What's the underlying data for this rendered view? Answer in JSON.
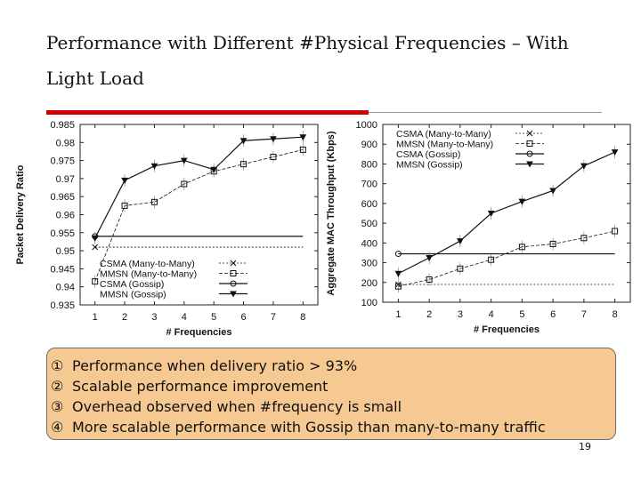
{
  "slide": {
    "title_line1": "Performance with Different #Physical Frequencies – With",
    "title_line2": "Light Load",
    "notes": [
      {
        "num": "①",
        "text": "Performance when delivery ratio > 93%"
      },
      {
        "num": "②",
        "text": "Scalable performance improvement"
      },
      {
        "num": "③",
        "text": "Overhead observed when #frequency is small"
      },
      {
        "num": "④",
        "text": "More scalable performance with Gossip than many-to-many traffic"
      }
    ],
    "page_number": "19",
    "accent_color": "#d40000",
    "notes_background": "#f7c992"
  },
  "chart_data": [
    {
      "type": "line",
      "xlabel": "# Frequencies",
      "ylabel": "Packet Delivery Ratio",
      "x": [
        1,
        2,
        3,
        4,
        5,
        6,
        7,
        8
      ],
      "xlim": [
        0.5,
        8.5
      ],
      "ylim": [
        0.935,
        0.985
      ],
      "yticks": [
        0.935,
        0.94,
        0.945,
        0.95,
        0.955,
        0.96,
        0.965,
        0.97,
        0.975,
        0.98,
        0.985
      ],
      "ytick_labels": [
        "0.935",
        "0.94",
        "0.945",
        "0.95",
        "0.955",
        "0.96",
        "0.965",
        "0.97",
        "0.975",
        "0.98",
        "0.985"
      ],
      "legend_position": "bottom-right",
      "grid": false,
      "series": [
        {
          "name": "CSMA (Many-to-Many)",
          "marker": "x",
          "dash": "2,2",
          "values": [
            0.951,
            0.951,
            0.951,
            0.951,
            0.951,
            0.951,
            0.951,
            0.951
          ],
          "draw_markers": [
            1
          ]
        },
        {
          "name": "MMSN (Many-to-Many)",
          "marker": "square",
          "dash": "4,2",
          "values": [
            0.9415,
            0.9625,
            0.9635,
            0.9685,
            0.972,
            0.974,
            0.976,
            0.978
          ]
        },
        {
          "name": "CSMA (Gossip)",
          "marker": "circle",
          "dash": "",
          "values": [
            0.954,
            0.954,
            0.954,
            0.954,
            0.954,
            0.954,
            0.954,
            0.954
          ],
          "draw_markers": [
            1
          ]
        },
        {
          "name": "MMSN (Gossip)",
          "marker": "triangle-down",
          "dash": "",
          "values": [
            0.9535,
            0.9695,
            0.9735,
            0.975,
            0.9725,
            0.9805,
            0.981,
            0.9815
          ]
        }
      ]
    },
    {
      "type": "line",
      "xlabel": "# Frequencies",
      "ylabel": "Aggregate MAC Throughput (Kbps)",
      "x": [
        1,
        2,
        3,
        4,
        5,
        6,
        7,
        8
      ],
      "xlim": [
        0.5,
        8.5
      ],
      "ylim": [
        100,
        1000
      ],
      "yticks": [
        100,
        200,
        300,
        400,
        500,
        600,
        700,
        800,
        900,
        1000
      ],
      "ytick_labels": [
        "100",
        "200",
        "300",
        "400",
        "500",
        "600",
        "700",
        "800",
        "900",
        "1000"
      ],
      "legend_position": "top-right",
      "grid": false,
      "series": [
        {
          "name": "CSMA (Many-to-Many)",
          "marker": "x",
          "dash": "2,2",
          "values": [
            190,
            190,
            190,
            190,
            190,
            190,
            190,
            190
          ],
          "draw_markers": [
            1
          ]
        },
        {
          "name": "MMSN (Many-to-Many)",
          "marker": "square",
          "dash": "4,2",
          "values": [
            180,
            215,
            270,
            315,
            380,
            395,
            425,
            460
          ]
        },
        {
          "name": "CSMA (Gossip)",
          "marker": "circle",
          "dash": "",
          "values": [
            345,
            345,
            345,
            345,
            345,
            345,
            345,
            345
          ],
          "draw_markers": [
            1
          ]
        },
        {
          "name": "MMSN (Gossip)",
          "marker": "triangle-down",
          "dash": "",
          "values": [
            245,
            325,
            410,
            550,
            610,
            665,
            790,
            860
          ]
        }
      ]
    }
  ]
}
